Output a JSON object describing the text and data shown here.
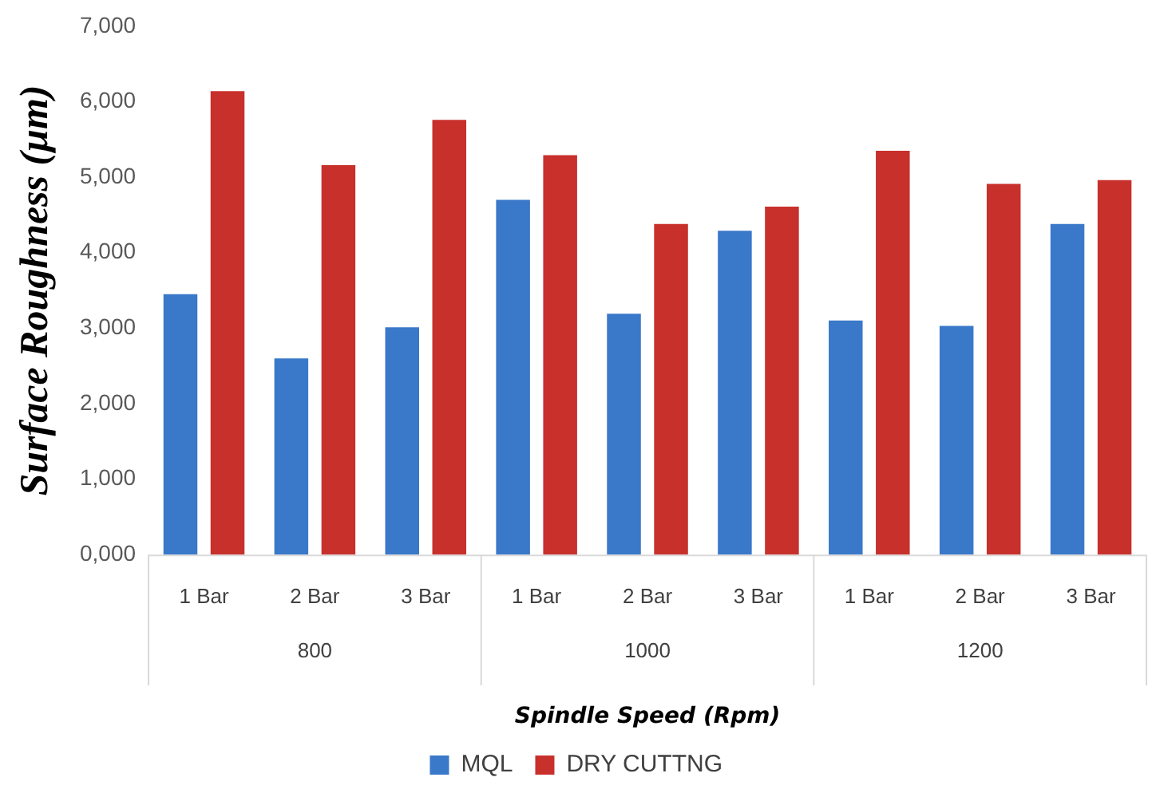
{
  "chart_data": {
    "type": "bar",
    "xlabel": "Spindle Speed (Rpm)",
    "ylabel": "Surface Roughness (µm)",
    "categories": [
      "1 Bar",
      "2 Bar",
      "3 Bar",
      "1 Bar",
      "2 Bar",
      "3 Bar",
      "1 Bar",
      "2 Bar",
      "3 Bar"
    ],
    "annotations": [
      "800",
      "1000",
      "1200"
    ],
    "series": [
      {
        "name": "MQL",
        "color": "#3a78c9",
        "values": [
          3450,
          2600,
          3010,
          4700,
          3190,
          4290,
          3100,
          3030,
          4380
        ]
      },
      {
        "name": "DRY CUTTNG",
        "color": "#c8302c",
        "values": [
          6140,
          5160,
          5760,
          5290,
          4380,
          4610,
          5350,
          4910,
          4960
        ]
      }
    ],
    "ylim": [
      0,
      7000
    ],
    "yticks": [
      {
        "value": 0,
        "label": "0,000"
      },
      {
        "value": 1000,
        "label": "1,000"
      },
      {
        "value": 2000,
        "label": "2,000"
      },
      {
        "value": 3000,
        "label": "3,000"
      },
      {
        "value": 4000,
        "label": "4,000"
      },
      {
        "value": 5000,
        "label": "5,000"
      },
      {
        "value": 6000,
        "label": "6,000"
      },
      {
        "value": 7000,
        "label": "7,000"
      }
    ],
    "grid": false,
    "legend": "bottom"
  }
}
